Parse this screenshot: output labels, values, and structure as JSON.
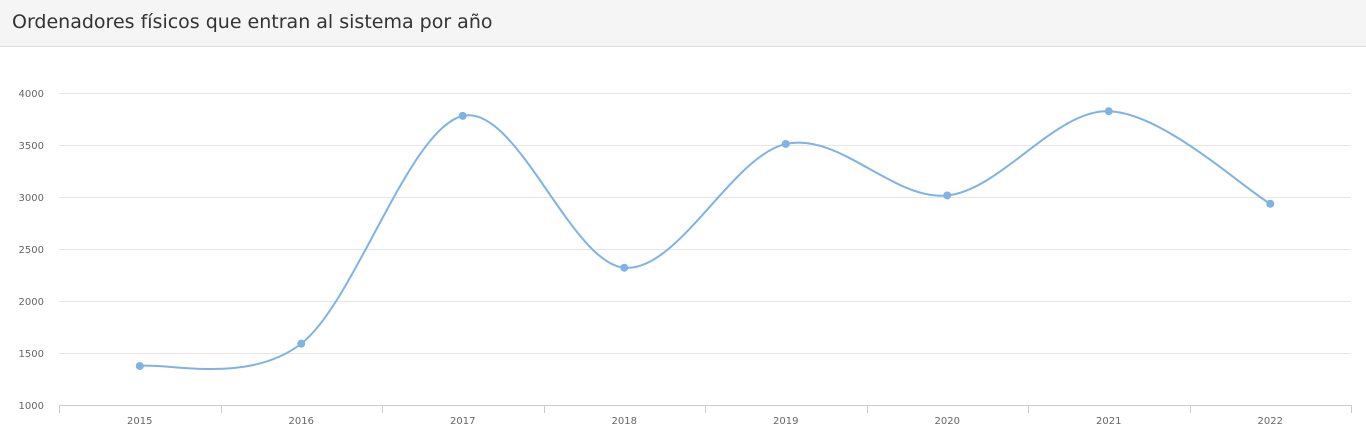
{
  "header": {
    "title": "Ordenadores físicos que entran al sistema por año"
  },
  "chart_data": {
    "type": "line",
    "title": "Ordenadores físicos que entran al sistema por año",
    "xlabel": "",
    "ylabel": "",
    "categories": [
      "2015",
      "2016",
      "2017",
      "2018",
      "2019",
      "2020",
      "2021",
      "2022"
    ],
    "series": [
      {
        "values": [
          1375,
          1590,
          3780,
          2320,
          3510,
          3015,
          3825,
          2935
        ]
      }
    ],
    "ylim": [
      1000,
      4000
    ],
    "yticks": [
      "1000",
      "1500",
      "2000",
      "2500",
      "3000",
      "3500",
      "4000"
    ],
    "grid": true,
    "smooth": true,
    "line_color": "#7fb3e4",
    "grid_color": "#e6e6e6",
    "axis_color": "#cccccc"
  }
}
